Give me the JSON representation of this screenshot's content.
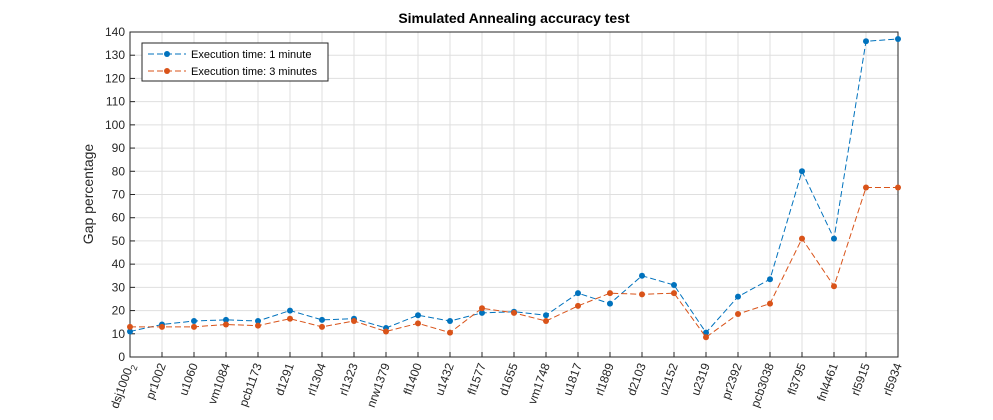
{
  "chart_data": {
    "type": "line",
    "title": "Simulated Annealing accuracy test",
    "xlabel": "",
    "ylabel": "Gap percentage",
    "ylim": [
      0,
      140
    ],
    "yticks": [
      0,
      10,
      20,
      30,
      40,
      50,
      60,
      70,
      80,
      90,
      100,
      110,
      120,
      130,
      140
    ],
    "grid": true,
    "legend_position": "top-left",
    "categories": [
      "dsj1000",
      "pr1002",
      "u1060",
      "vm1084",
      "pcb1173",
      "d1291",
      "rl1304",
      "rl1323",
      "nrw1379",
      "fl1400",
      "u1432",
      "fl1577",
      "d1655",
      "vm1748",
      "u1817",
      "rl1889",
      "d2103",
      "u2152",
      "u2319",
      "pr2392",
      "pcb3038",
      "fl3795",
      "fnl4461",
      "rl5915",
      "rl5934"
    ],
    "first_category_subscript": "2",
    "series": [
      {
        "name": "Execution time: 1 minute",
        "color": "#0072BD",
        "values": [
          11,
          14,
          15.5,
          16,
          15.5,
          20,
          16,
          16.5,
          12.5,
          18,
          15.5,
          19,
          19.5,
          18,
          27.5,
          23,
          35,
          31,
          10.5,
          26,
          33.5,
          80,
          51,
          136,
          137
        ]
      },
      {
        "name": "Execution time: 3 minutes",
        "color": "#D95319",
        "values": [
          13,
          13,
          13,
          14,
          13.5,
          16.5,
          13,
          15.5,
          11,
          14.5,
          10.5,
          21,
          19,
          15.5,
          22,
          27.5,
          27,
          27.5,
          8.5,
          18.5,
          23,
          51,
          30.5,
          73,
          73
        ]
      }
    ]
  }
}
